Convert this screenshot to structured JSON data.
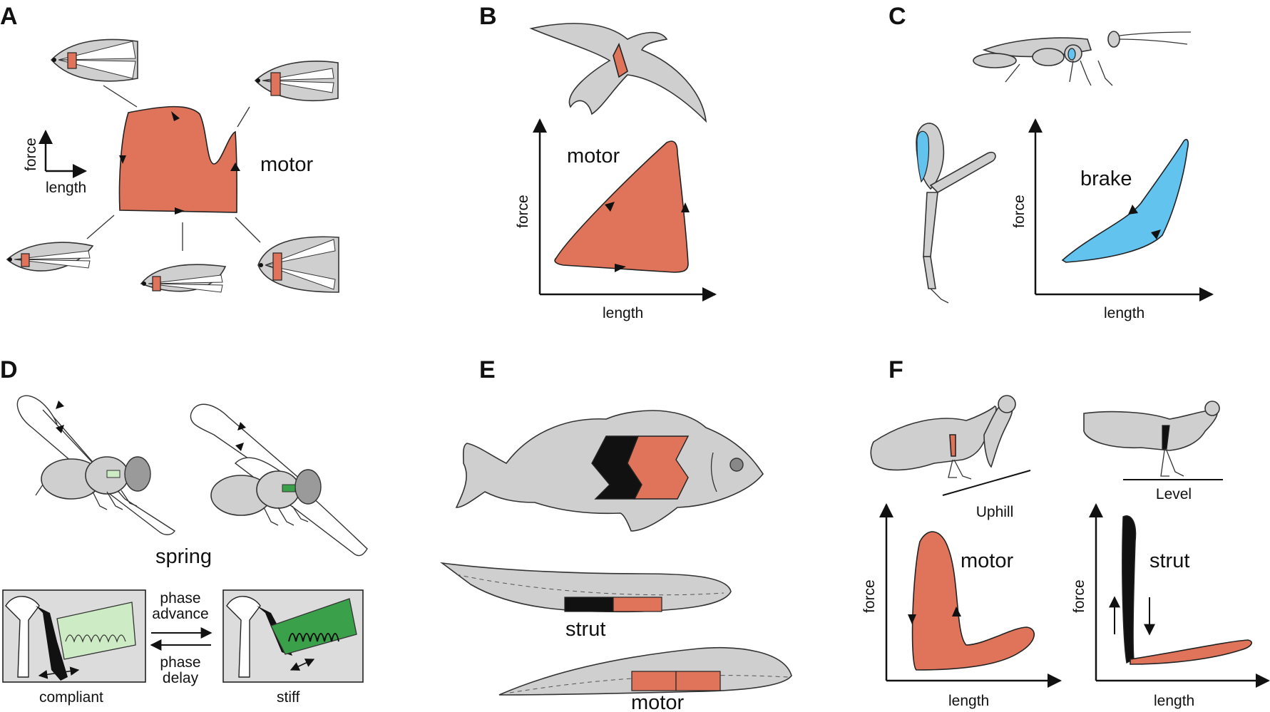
{
  "panels": {
    "A": {
      "letter": "A",
      "loop_label": "motor",
      "axis_force": "force",
      "axis_length": "length",
      "loop_color": "#e0745a"
    },
    "B": {
      "letter": "B",
      "loop_label": "motor",
      "axis_force": "force",
      "axis_length": "length",
      "loop_color": "#e0745a"
    },
    "C": {
      "letter": "C",
      "loop_label": "brake",
      "axis_force": "force",
      "axis_length": "length",
      "loop_color": "#62c3ee"
    },
    "D": {
      "letter": "D",
      "title": "spring",
      "phase_advance": [
        "phase",
        "advance"
      ],
      "phase_delay": [
        "phase",
        "delay"
      ],
      "compliant": "compliant",
      "stiff": "stiff",
      "compliant_color": "#cdebc4",
      "stiff_color": "#3aa14a"
    },
    "E": {
      "letter": "E",
      "strut": "strut",
      "motor": "motor"
    },
    "F": {
      "letter": "F",
      "uphill": "Uphill",
      "level": "Level",
      "motor": "motor",
      "strut": "strut",
      "axis_force": "force",
      "axis_length": "length"
    }
  }
}
